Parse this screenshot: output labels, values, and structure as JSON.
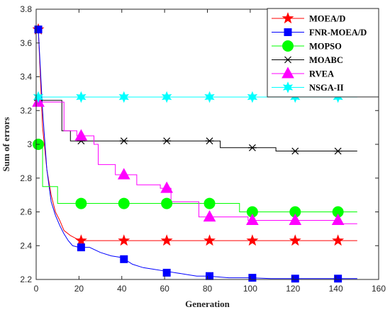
{
  "chart_data": {
    "type": "line",
    "xlabel": "Generation",
    "ylabel": "Sum of errors",
    "xlim": [
      0,
      160
    ],
    "ylim": [
      2.2,
      3.8
    ],
    "xticks": [
      0,
      20,
      40,
      60,
      80,
      100,
      120,
      140,
      160
    ],
    "yticks": [
      2.2,
      2.4,
      2.6,
      2.8,
      3.0,
      3.2,
      3.4,
      3.6,
      3.8
    ],
    "ytick_labels": [
      "2.2",
      "2.4",
      "2.6",
      "2.8",
      "3",
      "3.2",
      "3.4",
      "3.6",
      "3.8"
    ],
    "grid": false,
    "legend_position": "top-right",
    "series": [
      {
        "name": "MOEA/D",
        "color": "#ff0000",
        "marker": "star",
        "line": [
          [
            1,
            3.68
          ],
          [
            3,
            3.1
          ],
          [
            5,
            2.85
          ],
          [
            7,
            2.7
          ],
          [
            9,
            2.6
          ],
          [
            11,
            2.55
          ],
          [
            13,
            2.49
          ],
          [
            16,
            2.46
          ],
          [
            19,
            2.44
          ],
          [
            21,
            2.43
          ],
          [
            30,
            2.43
          ],
          [
            60,
            2.43
          ],
          [
            100,
            2.43
          ],
          [
            150,
            2.43
          ]
        ],
        "markers": [
          [
            1,
            3.68
          ],
          [
            21,
            2.43
          ],
          [
            41,
            2.43
          ],
          [
            61,
            2.43
          ],
          [
            81,
            2.43
          ],
          [
            101,
            2.43
          ],
          [
            121,
            2.43
          ],
          [
            141,
            2.43
          ]
        ]
      },
      {
        "name": "FNR-MOEA/D",
        "color": "#0000ff",
        "marker": "square",
        "line": [
          [
            1,
            3.68
          ],
          [
            3,
            3.2
          ],
          [
            5,
            2.85
          ],
          [
            7,
            2.66
          ],
          [
            9,
            2.58
          ],
          [
            11,
            2.52
          ],
          [
            13,
            2.47
          ],
          [
            15,
            2.43
          ],
          [
            17,
            2.4
          ],
          [
            20,
            2.39
          ],
          [
            25,
            2.39
          ],
          [
            30,
            2.36
          ],
          [
            35,
            2.34
          ],
          [
            40,
            2.33
          ],
          [
            45,
            2.29
          ],
          [
            50,
            2.27
          ],
          [
            55,
            2.26
          ],
          [
            60,
            2.25
          ],
          [
            65,
            2.24
          ],
          [
            70,
            2.23
          ],
          [
            75,
            2.22
          ],
          [
            80,
            2.22
          ],
          [
            90,
            2.21
          ],
          [
            100,
            2.21
          ],
          [
            110,
            2.205
          ],
          [
            120,
            2.205
          ],
          [
            150,
            2.205
          ]
        ],
        "markers": [
          [
            1,
            3.68
          ],
          [
            21,
            2.39
          ],
          [
            41,
            2.32
          ],
          [
            61,
            2.24
          ],
          [
            81,
            2.22
          ],
          [
            101,
            2.21
          ],
          [
            121,
            2.205
          ],
          [
            141,
            2.205
          ]
        ]
      },
      {
        "name": "MOPSO",
        "color": "#00ff00",
        "marker": "circle",
        "line": [
          [
            1,
            3.0
          ],
          [
            3,
            3.0
          ],
          [
            3,
            2.75
          ],
          [
            10,
            2.75
          ],
          [
            10,
            2.65
          ],
          [
            95,
            2.65
          ],
          [
            95,
            2.6
          ],
          [
            150,
            2.6
          ]
        ],
        "markers": [
          [
            1,
            3.0
          ],
          [
            21,
            2.65
          ],
          [
            41,
            2.65
          ],
          [
            61,
            2.65
          ],
          [
            81,
            2.65
          ],
          [
            101,
            2.6
          ],
          [
            121,
            2.6
          ],
          [
            141,
            2.6
          ]
        ]
      },
      {
        "name": "MOABC",
        "color": "#000000",
        "marker": "asterisk",
        "line": [
          [
            1,
            3.26
          ],
          [
            12,
            3.26
          ],
          [
            12,
            3.08
          ],
          [
            16,
            3.08
          ],
          [
            16,
            3.02
          ],
          [
            86,
            3.02
          ],
          [
            86,
            2.98
          ],
          [
            112,
            2.98
          ],
          [
            112,
            2.96
          ],
          [
            150,
            2.96
          ]
        ],
        "markers": [
          [
            1,
            3.26
          ],
          [
            21,
            3.02
          ],
          [
            41,
            3.02
          ],
          [
            61,
            3.02
          ],
          [
            81,
            3.02
          ],
          [
            101,
            2.98
          ],
          [
            121,
            2.96
          ],
          [
            141,
            2.96
          ]
        ]
      },
      {
        "name": "RVEA",
        "color": "#ff00ff",
        "marker": "triangle",
        "line": [
          [
            1,
            3.25
          ],
          [
            13,
            3.25
          ],
          [
            13,
            3.08
          ],
          [
            19,
            3.08
          ],
          [
            19,
            3.05
          ],
          [
            27,
            3.05
          ],
          [
            27,
            3.0
          ],
          [
            29,
            3.0
          ],
          [
            29,
            2.88
          ],
          [
            37,
            2.88
          ],
          [
            37,
            2.82
          ],
          [
            47,
            2.82
          ],
          [
            47,
            2.76
          ],
          [
            58,
            2.76
          ],
          [
            58,
            2.74
          ],
          [
            63,
            2.74
          ],
          [
            63,
            2.66
          ],
          [
            76,
            2.66
          ],
          [
            76,
            2.57
          ],
          [
            99,
            2.57
          ],
          [
            99,
            2.55
          ],
          [
            140,
            2.55
          ],
          [
            140,
            2.53
          ],
          [
            150,
            2.53
          ]
        ],
        "markers": [
          [
            1,
            3.25
          ],
          [
            21,
            3.05
          ],
          [
            41,
            2.82
          ],
          [
            61,
            2.74
          ],
          [
            81,
            2.57
          ],
          [
            101,
            2.55
          ],
          [
            121,
            2.55
          ],
          [
            141,
            2.55
          ]
        ]
      },
      {
        "name": "NSGA-II",
        "color": "#00ffff",
        "marker": "hexagram",
        "line": [
          [
            1,
            3.28
          ],
          [
            150,
            3.28
          ]
        ],
        "markers": [
          [
            1,
            3.28
          ],
          [
            21,
            3.28
          ],
          [
            41,
            3.28
          ],
          [
            61,
            3.28
          ],
          [
            81,
            3.28
          ],
          [
            101,
            3.28
          ],
          [
            121,
            3.28
          ],
          [
            141,
            3.28
          ]
        ]
      }
    ]
  }
}
